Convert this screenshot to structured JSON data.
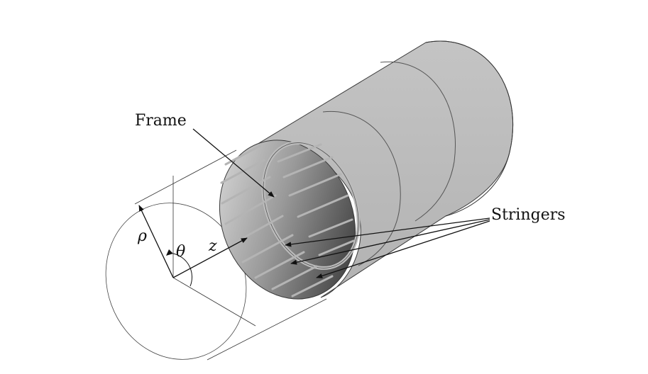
{
  "labels": {
    "frame": "Frame",
    "stringers": "Stringers",
    "rho": "ρ",
    "theta": "θ",
    "z": "z"
  },
  "colors": {
    "shell": "#b9b9b9",
    "shell_edge": "#3a3a3a",
    "interior_light": "#d6d6d6",
    "interior_dark": "#2e2e2e",
    "stringer": "#a8a8a8",
    "line": "#222222"
  }
}
